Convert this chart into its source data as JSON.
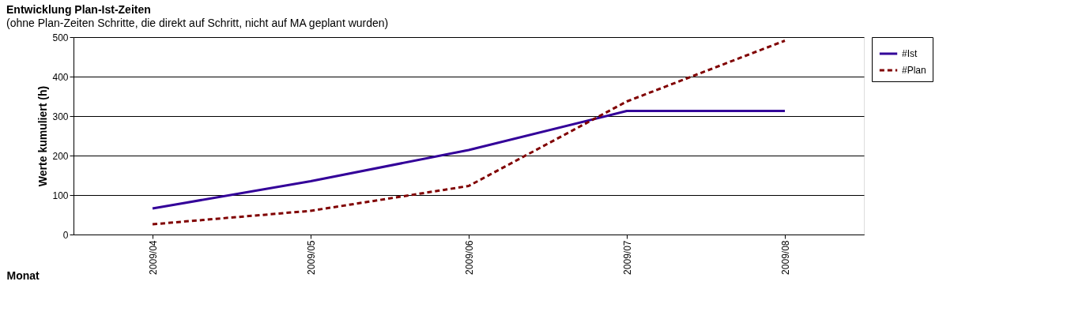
{
  "chart_data": {
    "type": "line",
    "title": "Entwicklung Plan-Ist-Zeiten",
    "subtitle": "(ohne Plan-Zeiten Schritte, die direkt auf Schritt, nicht auf MA geplant wurden)",
    "xlabel": "Monat",
    "ylabel": "Werte kumuliert (h)",
    "categories": [
      "2009/04",
      "2009/05",
      "2009/06",
      "2009/07",
      "2009/08"
    ],
    "series": [
      {
        "name": "#Ist",
        "color": "#330099",
        "line_style": "solid",
        "values": [
          66,
          135,
          214,
          313,
          313
        ]
      },
      {
        "name": "#Plan",
        "color": "#800000",
        "line_style": "dashed",
        "values": [
          26,
          60,
          123,
          337,
          491
        ]
      }
    ],
    "ylim": [
      0,
      500
    ],
    "yticks": [
      0,
      100,
      200,
      300,
      400,
      500
    ],
    "grid": "y",
    "legend": "top right",
    "marker": "none"
  }
}
